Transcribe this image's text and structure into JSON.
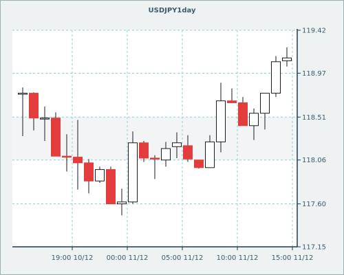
{
  "chart_data": {
    "type": "candlestick",
    "title": "USDJPY1day",
    "yaxis": {
      "position": "right",
      "ticks": [
        119.42,
        118.97,
        118.51,
        118.06,
        117.6,
        117.15
      ],
      "ylim": [
        117.15,
        119.42
      ]
    },
    "xaxis": {
      "ticks": [
        {
          "label": "19:00 10/12",
          "index": 4.5
        },
        {
          "label": "00:00 11/12",
          "index": 9.5
        },
        {
          "label": "05:00 11/12",
          "index": 14.5
        },
        {
          "label": "10:00 11/12",
          "index": 19.5
        },
        {
          "label": "15:00 11/12",
          "index": 24.5
        }
      ]
    },
    "grid": true,
    "colors": {
      "bullish_body": "#ffffff",
      "bearish_body": "#e23c3c",
      "outline": "#1a1a1a",
      "grid": "#8fd0d3",
      "axis": "#1f3b4d",
      "plot_bg": "#ffffff",
      "band_bg": "#f2f4f5"
    },
    "candles": [
      {
        "open": 118.76,
        "high": 118.82,
        "low": 118.31,
        "close": 118.76
      },
      {
        "open": 118.76,
        "high": 118.77,
        "low": 118.37,
        "close": 118.5
      },
      {
        "open": 118.5,
        "high": 118.62,
        "low": 118.26,
        "close": 118.5
      },
      {
        "open": 118.5,
        "high": 118.56,
        "low": 118.1,
        "close": 118.1
      },
      {
        "open": 118.1,
        "high": 118.33,
        "low": 117.94,
        "close": 118.09
      },
      {
        "open": 118.09,
        "high": 118.48,
        "low": 117.75,
        "close": 118.03
      },
      {
        "open": 118.03,
        "high": 118.07,
        "low": 117.71,
        "close": 117.84
      },
      {
        "open": 117.84,
        "high": 117.99,
        "low": 117.82,
        "close": 117.96
      },
      {
        "open": 117.96,
        "high": 117.99,
        "low": 117.6,
        "close": 117.6
      },
      {
        "open": 117.6,
        "high": 117.76,
        "low": 117.48,
        "close": 117.62
      },
      {
        "open": 117.62,
        "high": 118.36,
        "low": 117.6,
        "close": 118.24
      },
      {
        "open": 118.24,
        "high": 118.26,
        "low": 118.04,
        "close": 118.08
      },
      {
        "open": 118.08,
        "high": 118.11,
        "low": 117.86,
        "close": 118.07
      },
      {
        "open": 118.06,
        "high": 118.25,
        "low": 117.99,
        "close": 118.18
      },
      {
        "open": 118.2,
        "high": 118.35,
        "low": 118.08,
        "close": 118.24
      },
      {
        "open": 118.21,
        "high": 118.32,
        "low": 118.04,
        "close": 118.07
      },
      {
        "open": 118.06,
        "high": 118.06,
        "low": 117.97,
        "close": 117.98
      },
      {
        "open": 117.98,
        "high": 118.32,
        "low": 117.98,
        "close": 118.25
      },
      {
        "open": 118.25,
        "high": 118.87,
        "low": 118.14,
        "close": 118.68
      },
      {
        "open": 118.68,
        "high": 118.81,
        "low": 118.66,
        "close": 118.66
      },
      {
        "open": 118.66,
        "high": 118.72,
        "low": 118.42,
        "close": 118.42
      },
      {
        "open": 118.42,
        "high": 118.6,
        "low": 118.27,
        "close": 118.55
      },
      {
        "open": 118.55,
        "high": 118.76,
        "low": 118.38,
        "close": 118.76
      },
      {
        "open": 118.76,
        "high": 119.15,
        "low": 118.72,
        "close": 119.09
      },
      {
        "open": 119.1,
        "high": 119.24,
        "low": 119.04,
        "close": 119.13
      }
    ]
  }
}
